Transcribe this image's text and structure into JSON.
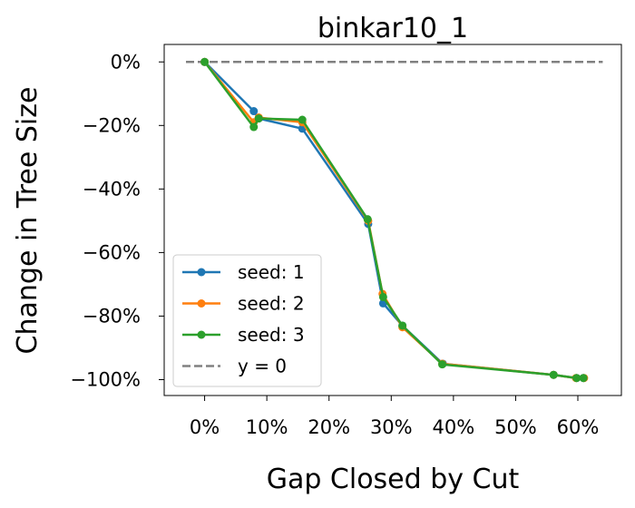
{
  "chart_data": {
    "type": "line",
    "title": "binkar10_1",
    "xlabel": "Gap Closed by Cut",
    "ylabel": "Change in Tree Size",
    "xlim": [
      -0.065,
      0.67
    ],
    "ylim": [
      -105,
      5.5
    ],
    "x_ticks": [
      0,
      0.1,
      0.2,
      0.3,
      0.4,
      0.5,
      0.6
    ],
    "x_tick_labels": [
      "0%",
      "10%",
      "20%",
      "30%",
      "40%",
      "50%",
      "60%"
    ],
    "y_ticks": [
      0,
      -20,
      -40,
      -60,
      -80,
      -100
    ],
    "y_tick_labels": [
      "0%",
      "−20%",
      "−40%",
      "−60%",
      "−80%",
      "−100%"
    ],
    "grid": false,
    "legend_position": "lower-left",
    "reference_line": {
      "name": "y = 0",
      "x": [
        -0.03,
        0.64
      ],
      "y": [
        0,
        0
      ],
      "color": "#808080",
      "style": "dashed"
    },
    "series": [
      {
        "name": "seed: 1",
        "color": "#1f77b4",
        "x": [
          0,
          0.079,
          0.087,
          0.157,
          0.263,
          0.287,
          0.318,
          0.383,
          0.561,
          0.598,
          0.609
        ],
        "y": [
          0,
          -15.5,
          -17.8,
          -21.0,
          -51.0,
          -76.0,
          -83.0,
          -95.0,
          -98.5,
          -99.5,
          -99.5
        ]
      },
      {
        "name": "seed: 2",
        "color": "#ff7f0e",
        "x": [
          0,
          0.079,
          0.087,
          0.157,
          0.263,
          0.286,
          0.318,
          0.382,
          0.561,
          0.597,
          0.61
        ],
        "y": [
          0,
          -19.0,
          -17.5,
          -19.0,
          -50.0,
          -73.0,
          -83.5,
          -95.0,
          -98.5,
          -99.5,
          -99.5
        ]
      },
      {
        "name": "seed: 3",
        "color": "#2ca02c",
        "x": [
          0,
          0.079,
          0.087,
          0.157,
          0.262,
          0.287,
          0.318,
          0.382,
          0.561,
          0.598,
          0.609
        ],
        "y": [
          0,
          -20.5,
          -17.8,
          -18.2,
          -49.5,
          -74.0,
          -83.0,
          -95.2,
          -98.5,
          -99.5,
          -99.5
        ]
      }
    ]
  }
}
